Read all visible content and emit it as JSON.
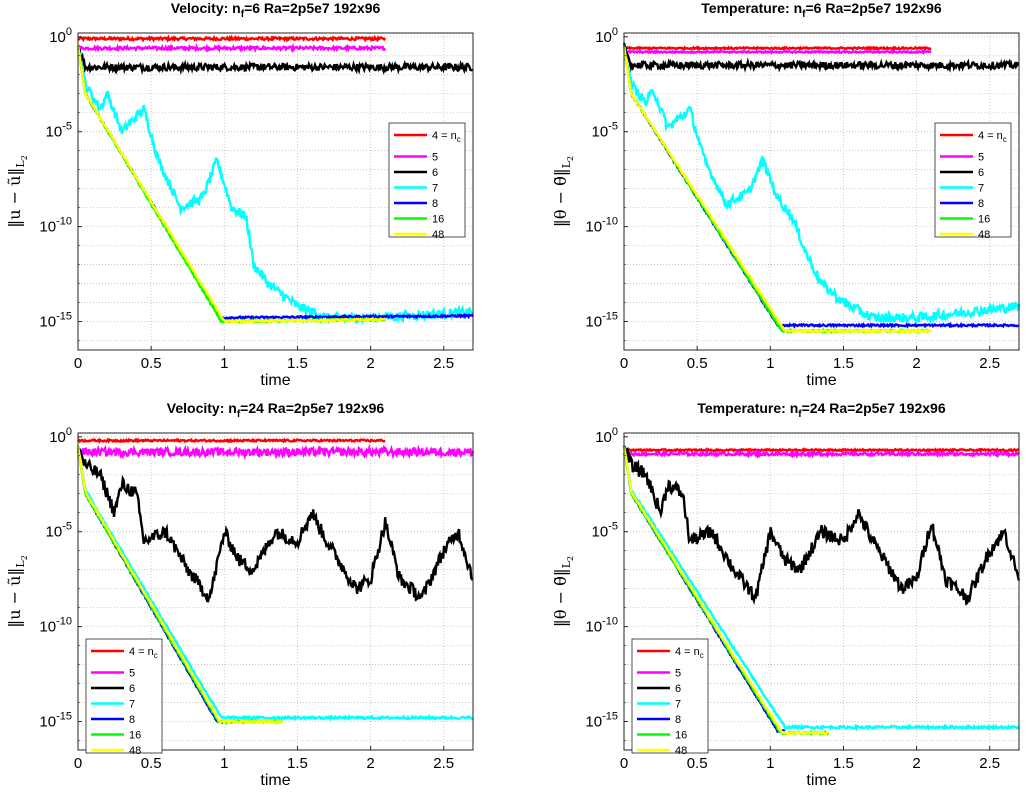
{
  "chart_data": [
    {
      "type": "line",
      "title_parts": [
        "Velocity:  n",
        "f",
        "=6  Ra=2p5e7  192x96"
      ],
      "ylabel_parts": [
        "‖u − ũ‖",
        "L",
        "2"
      ],
      "xlabel": "time",
      "xlim": [
        0,
        2.7
      ],
      "ylim_log10": [
        -16.5,
        0.2
      ],
      "x_ticks": [
        "0",
        "0.5",
        "1",
        "1.5",
        "2",
        "2.5"
      ],
      "y_ticks": [
        {
          "base": "10",
          "exp": "0"
        },
        {
          "base": "10",
          "exp": "-5"
        },
        {
          "base": "10",
          "exp": "-10"
        },
        {
          "base": "10",
          "exp": "-15"
        }
      ],
      "legend_location": "upper-right",
      "series": [
        {
          "name": "4 = n",
          "name_sub": "c",
          "color": "#ff0000",
          "noise": 0.07,
          "x": [
            0,
            2.1
          ],
          "log10y": [
            -0.1,
            -0.1
          ]
        },
        {
          "name": "5",
          "name_sub": "",
          "color": "#ff00ff",
          "noise": 0.08,
          "x": [
            0,
            2.1
          ],
          "log10y": [
            -0.6,
            -0.6
          ]
        },
        {
          "name": "6",
          "name_sub": "",
          "color": "#000000",
          "noise": 0.18,
          "x": [
            0,
            0.05,
            2.7
          ],
          "log10y": [
            -0.5,
            -1.6,
            -1.6
          ]
        },
        {
          "name": "7",
          "name_sub": "",
          "color": "#00ffff",
          "noise": 0.25,
          "x": [
            0,
            0.05,
            0.15,
            0.2,
            0.3,
            0.45,
            0.55,
            0.7,
            0.85,
            0.95,
            1.05,
            1.15,
            1.2,
            1.3,
            1.5,
            1.7,
            2.0,
            2.7
          ],
          "log10y": [
            -0.5,
            -2.5,
            -3.8,
            -3.0,
            -5.0,
            -3.8,
            -6.5,
            -9.0,
            -8.5,
            -6.5,
            -9.0,
            -9.5,
            -12.0,
            -13.0,
            -14.2,
            -14.8,
            -14.8,
            -14.5
          ]
        },
        {
          "name": "8",
          "name_sub": "",
          "color": "#0000ff",
          "noise": 0.05,
          "x": [
            0,
            0.05,
            0.98,
            2.7
          ],
          "log10y": [
            -0.5,
            -3.0,
            -14.8,
            -14.7
          ]
        },
        {
          "name": "16",
          "name_sub": "",
          "color": "#00ff00",
          "noise": 0.05,
          "x": [
            0,
            0.05,
            0.98,
            2.1
          ],
          "log10y": [
            -0.5,
            -3.0,
            -15.0,
            -14.9
          ]
        },
        {
          "name": "48",
          "name_sub": "",
          "color": "#ffff00",
          "noise": 0.05,
          "x": [
            0,
            0.05,
            1.0,
            2.1
          ],
          "log10y": [
            -0.5,
            -3.0,
            -15.0,
            -14.9
          ]
        }
      ]
    },
    {
      "type": "line",
      "title_parts": [
        "Temperature:  n",
        "f",
        "=6  Ra=2p5e7  192x96"
      ],
      "ylabel_parts": [
        "‖θ − θ̃‖",
        "L",
        "2"
      ],
      "xlabel": "time",
      "xlim": [
        0,
        2.7
      ],
      "ylim_log10": [
        -16.5,
        0.2
      ],
      "x_ticks": [
        "0",
        "0.5",
        "1",
        "1.5",
        "2",
        "2.5"
      ],
      "y_ticks": [
        {
          "base": "10",
          "exp": "0"
        },
        {
          "base": "10",
          "exp": "-5"
        },
        {
          "base": "10",
          "exp": "-10"
        },
        {
          "base": "10",
          "exp": "-15"
        }
      ],
      "legend_location": "upper-right",
      "series": [
        {
          "name": "4 = n",
          "name_sub": "c",
          "color": "#ff0000",
          "noise": 0.04,
          "x": [
            0,
            2.1
          ],
          "log10y": [
            -0.6,
            -0.6
          ]
        },
        {
          "name": "5",
          "name_sub": "",
          "color": "#ff00ff",
          "noise": 0.04,
          "x": [
            0,
            2.1
          ],
          "log10y": [
            -0.8,
            -0.8
          ]
        },
        {
          "name": "6",
          "name_sub": "",
          "color": "#000000",
          "noise": 0.18,
          "x": [
            0,
            0.05,
            2.7
          ],
          "log10y": [
            -0.5,
            -1.5,
            -1.5
          ]
        },
        {
          "name": "7",
          "name_sub": "",
          "color": "#00ffff",
          "noise": 0.25,
          "x": [
            0,
            0.05,
            0.15,
            0.2,
            0.3,
            0.45,
            0.55,
            0.7,
            0.85,
            0.95,
            1.05,
            1.15,
            1.25,
            1.35,
            1.5,
            1.7,
            2.0,
            2.7
          ],
          "log10y": [
            -0.5,
            -2.5,
            -3.5,
            -2.8,
            -4.8,
            -3.8,
            -6.5,
            -8.8,
            -8.2,
            -6.5,
            -8.5,
            -9.5,
            -11.5,
            -13.0,
            -14.0,
            -14.8,
            -14.8,
            -14.2
          ]
        },
        {
          "name": "8",
          "name_sub": "",
          "color": "#0000ff",
          "noise": 0.05,
          "x": [
            0,
            0.05,
            1.05,
            2.7
          ],
          "log10y": [
            -0.5,
            -3.0,
            -15.2,
            -15.2
          ]
        },
        {
          "name": "16",
          "name_sub": "",
          "color": "#00ff00",
          "noise": 0.05,
          "x": [
            0,
            0.05,
            1.08,
            2.1
          ],
          "log10y": [
            -0.5,
            -3.0,
            -15.5,
            -15.5
          ]
        },
        {
          "name": "48",
          "name_sub": "",
          "color": "#ffff00",
          "noise": 0.05,
          "x": [
            0,
            0.05,
            1.1,
            2.1
          ],
          "log10y": [
            -0.5,
            -3.0,
            -15.5,
            -15.5
          ]
        }
      ]
    },
    {
      "type": "line",
      "title_parts": [
        "Velocity:  n",
        "f",
        "=24  Ra=2p5e7  192x96"
      ],
      "ylabel_parts": [
        "‖u − ũ‖",
        "L",
        "2"
      ],
      "xlabel": "time",
      "xlim": [
        0,
        2.7
      ],
      "ylim_log10": [
        -16.5,
        0.2
      ],
      "x_ticks": [
        "0",
        "0.5",
        "1",
        "1.5",
        "2",
        "2.5"
      ],
      "y_ticks": [
        {
          "base": "10",
          "exp": "0"
        },
        {
          "base": "10",
          "exp": "-5"
        },
        {
          "base": "10",
          "exp": "-10"
        },
        {
          "base": "10",
          "exp": "-15"
        }
      ],
      "legend_location": "lower-left",
      "series": [
        {
          "name": "4 = n",
          "name_sub": "c",
          "color": "#ff0000",
          "noise": 0.05,
          "x": [
            0,
            2.1
          ],
          "log10y": [
            -0.2,
            -0.2
          ]
        },
        {
          "name": "5",
          "name_sub": "",
          "color": "#ff00ff",
          "noise": 0.2,
          "x": [
            0,
            2.7
          ],
          "log10y": [
            -0.8,
            -0.8
          ]
        },
        {
          "name": "6",
          "name_sub": "",
          "color": "#000000",
          "noise": 0.35,
          "x": [
            0,
            0.05,
            0.15,
            0.25,
            0.3,
            0.4,
            0.45,
            0.6,
            0.75,
            0.9,
            1.0,
            1.1,
            1.2,
            1.35,
            1.5,
            1.6,
            1.7,
            1.9,
            2.0,
            2.1,
            2.2,
            2.35,
            2.5,
            2.6,
            2.7
          ],
          "log10y": [
            -0.5,
            -1.5,
            -2.0,
            -4.0,
            -2.5,
            -3.0,
            -5.5,
            -5.0,
            -7.0,
            -8.5,
            -5.0,
            -6.5,
            -7.0,
            -5.0,
            -5.5,
            -4.0,
            -5.5,
            -8.0,
            -7.5,
            -4.5,
            -7.5,
            -8.5,
            -6.0,
            -5.0,
            -7.5
          ]
        },
        {
          "name": "7",
          "name_sub": "",
          "color": "#00ffff",
          "noise": 0.06,
          "x": [
            0,
            0.05,
            0.98,
            1.4,
            2.7
          ],
          "log10y": [
            -0.5,
            -2.8,
            -14.8,
            -14.8,
            -14.8
          ]
        },
        {
          "name": "8",
          "name_sub": "",
          "color": "#0000ff",
          "noise": 0.05,
          "x": [
            0,
            0.05,
            0.95,
            1.0
          ],
          "log10y": [
            -0.5,
            -3.0,
            -15.0,
            -15.0
          ]
        },
        {
          "name": "16",
          "name_sub": "",
          "color": "#00ff00",
          "noise": 0.05,
          "x": [
            0,
            0.05,
            0.96,
            1.4
          ],
          "log10y": [
            -0.5,
            -3.0,
            -15.0,
            -15.0
          ]
        },
        {
          "name": "48",
          "name_sub": "",
          "color": "#ffff00",
          "noise": 0.05,
          "x": [
            0,
            0.05,
            0.97,
            1.4
          ],
          "log10y": [
            -0.5,
            -2.9,
            -15.0,
            -15.0
          ]
        }
      ]
    },
    {
      "type": "line",
      "title_parts": [
        "Temperature:  n",
        "f",
        "=24  Ra=2p5e7  192x96"
      ],
      "ylabel_parts": [
        "‖θ − θ̃‖",
        "L",
        "2"
      ],
      "xlabel": "time",
      "xlim": [
        0,
        2.7
      ],
      "ylim_log10": [
        -16.5,
        0.2
      ],
      "x_ticks": [
        "0",
        "0.5",
        "1",
        "1.5",
        "2",
        "2.5"
      ],
      "y_ticks": [
        {
          "base": "10",
          "exp": "0"
        },
        {
          "base": "10",
          "exp": "-5"
        },
        {
          "base": "10",
          "exp": "-10"
        },
        {
          "base": "10",
          "exp": "-15"
        }
      ],
      "legend_location": "lower-left",
      "series": [
        {
          "name": "4 = n",
          "name_sub": "c",
          "color": "#ff0000",
          "noise": 0.04,
          "x": [
            0,
            2.7
          ],
          "log10y": [
            -0.7,
            -0.7
          ]
        },
        {
          "name": "5",
          "name_sub": "",
          "color": "#ff00ff",
          "noise": 0.08,
          "x": [
            0,
            2.7
          ],
          "log10y": [
            -0.9,
            -0.9
          ]
        },
        {
          "name": "6",
          "name_sub": "",
          "color": "#000000",
          "noise": 0.35,
          "x": [
            0,
            0.05,
            0.15,
            0.25,
            0.3,
            0.4,
            0.45,
            0.6,
            0.75,
            0.9,
            1.0,
            1.1,
            1.2,
            1.35,
            1.5,
            1.6,
            1.7,
            1.9,
            2.0,
            2.1,
            2.2,
            2.35,
            2.5,
            2.6,
            2.7
          ],
          "log10y": [
            -0.5,
            -1.5,
            -2.0,
            -4.0,
            -2.5,
            -3.0,
            -5.5,
            -5.0,
            -7.0,
            -8.5,
            -5.0,
            -6.5,
            -7.0,
            -5.0,
            -5.5,
            -4.0,
            -5.5,
            -8.0,
            -7.5,
            -4.5,
            -7.5,
            -8.5,
            -6.0,
            -5.0,
            -7.5
          ]
        },
        {
          "name": "7",
          "name_sub": "",
          "color": "#00ffff",
          "noise": 0.06,
          "x": [
            0,
            0.05,
            1.1,
            1.4,
            2.7
          ],
          "log10y": [
            -0.5,
            -2.8,
            -15.3,
            -15.3,
            -15.3
          ]
        },
        {
          "name": "8",
          "name_sub": "",
          "color": "#0000ff",
          "noise": 0.05,
          "x": [
            0,
            0.05,
            1.05,
            1.1
          ],
          "log10y": [
            -0.5,
            -3.0,
            -15.5,
            -15.5
          ]
        },
        {
          "name": "16",
          "name_sub": "",
          "color": "#00ff00",
          "noise": 0.05,
          "x": [
            0,
            0.05,
            1.07,
            1.4
          ],
          "log10y": [
            -0.5,
            -3.0,
            -15.6,
            -15.6
          ]
        },
        {
          "name": "48",
          "name_sub": "",
          "color": "#ffff00",
          "noise": 0.05,
          "x": [
            0,
            0.05,
            1.08,
            1.4
          ],
          "log10y": [
            -0.5,
            -2.9,
            -15.6,
            -15.6
          ]
        }
      ]
    }
  ]
}
